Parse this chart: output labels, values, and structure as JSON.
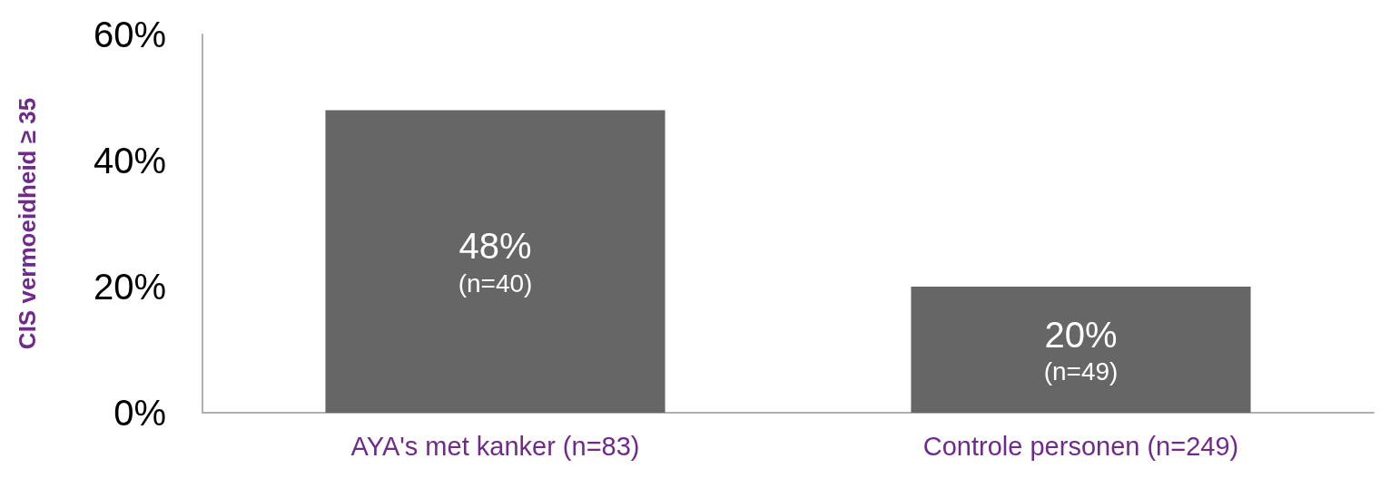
{
  "chart_data": {
    "type": "bar",
    "ylabel": "CIS vermoeidheid ≥ 35",
    "categories": [
      "AYA's met kanker (n=83)",
      "Controle personen (n=249)"
    ],
    "values": [
      48,
      20
    ],
    "value_labels": [
      "48%\n(n=40)",
      "20%\n(n=49)"
    ],
    "color": "#666666",
    "ylim": [
      0,
      60
    ],
    "yticks": [
      {
        "value": 0,
        "label": "0%"
      },
      {
        "value": 20,
        "label": "20%"
      },
      {
        "value": 40,
        "label": "40%"
      },
      {
        "value": 60,
        "label": "60%"
      }
    ],
    "grid": false
  }
}
